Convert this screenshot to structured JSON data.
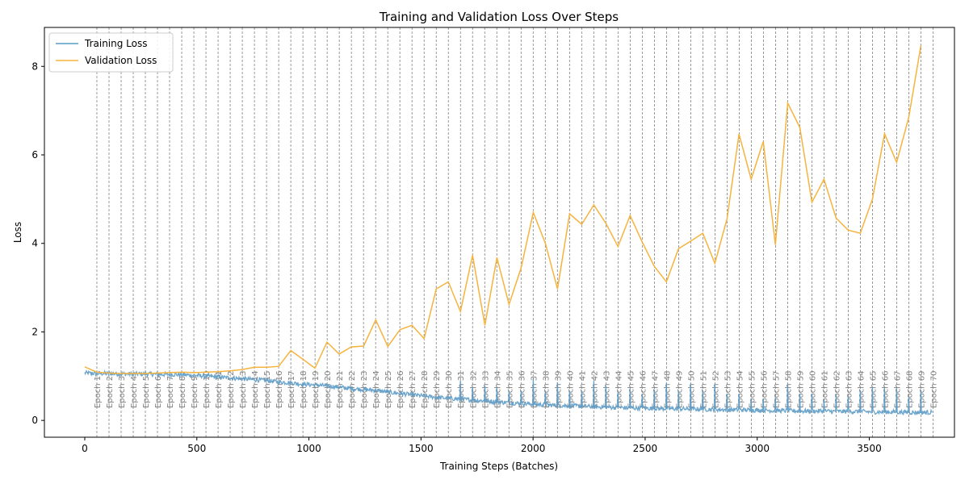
{
  "chart_data": {
    "type": "line",
    "title": "Training and Validation Loss Over Steps",
    "xlabel": "Training Steps (Batches)",
    "ylabel": "Loss",
    "xlim": [
      -180,
      3880
    ],
    "ylim": [
      -0.38,
      8.88
    ],
    "xticks": [
      0,
      500,
      1000,
      1500,
      2000,
      2500,
      3000,
      3500
    ],
    "yticks": [
      0,
      2,
      4,
      6,
      8
    ],
    "legend": {
      "position": "top-left",
      "entries": [
        {
          "label": "Training Loss",
          "color": "#5c9bc6"
        },
        {
          "label": "Validation Loss",
          "color": "#f6b33d"
        }
      ]
    },
    "epoch_step": 54.07,
    "epoch_labels": [
      "Epoch 1",
      "Epoch 2",
      "Epoch 3",
      "Epoch 4",
      "Epoch 5",
      "Epoch 6",
      "Epoch 7",
      "Epoch 8",
      "Epoch 9",
      "Epoch 10",
      "Epoch 11",
      "Epoch 12",
      "Epoch 13",
      "Epoch 14",
      "Epoch 15",
      "Epoch 16",
      "Epoch 17",
      "Epoch 18",
      "Epoch 19",
      "Epoch 20",
      "Epoch 21",
      "Epoch 22",
      "Epoch 23",
      "Epoch 24",
      "Epoch 25",
      "Epoch 26",
      "Epoch 27",
      "Epoch 28",
      "Epoch 29",
      "Epoch 30",
      "Epoch 31",
      "Epoch 32",
      "Epoch 33",
      "Epoch 34",
      "Epoch 35",
      "Epoch 36",
      "Epoch 37",
      "Epoch 38",
      "Epoch 39",
      "Epoch 40",
      "Epoch 41",
      "Epoch 42",
      "Epoch 43",
      "Epoch 44",
      "Epoch 45",
      "Epoch 46",
      "Epoch 47",
      "Epoch 48",
      "Epoch 49",
      "Epoch 50",
      "Epoch 51",
      "Epoch 52",
      "Epoch 53",
      "Epoch 54",
      "Epoch 55",
      "Epoch 56",
      "Epoch 57",
      "Epoch 58",
      "Epoch 59",
      "Epoch 60",
      "Epoch 61",
      "Epoch 62",
      "Epoch 63",
      "Epoch 64",
      "Epoch 65",
      "Epoch 66",
      "Epoch 67",
      "Epoch 68",
      "Epoch 69",
      "Epoch 70"
    ],
    "series": [
      {
        "name": "Training Loss",
        "color": "#5c9bc6",
        "x": [
          0,
          54,
          108,
          162,
          216,
          270,
          324,
          378,
          433,
          487,
          541,
          595,
          649,
          703,
          757,
          811,
          865,
          919,
          973,
          1027,
          1081,
          1135,
          1189,
          1244,
          1298,
          1352,
          1406,
          1460,
          1514,
          1568,
          1622,
          1676,
          1730,
          1785,
          1839,
          1893,
          1947,
          2001,
          2055,
          2109,
          2163,
          2217,
          2271,
          2325,
          2379,
          2433,
          2487,
          2541,
          2595,
          2649,
          2703,
          2757,
          2811,
          2865,
          2919,
          2973,
          3027,
          3081,
          3136,
          3190,
          3244,
          3298,
          3352,
          3406,
          3460,
          3514,
          3568,
          3622,
          3676,
          3730,
          3780
        ],
        "y": [
          1.07,
          1.06,
          1.06,
          1.05,
          1.05,
          1.05,
          1.04,
          1.04,
          1.03,
          1.02,
          1.0,
          0.98,
          0.96,
          0.94,
          0.92,
          0.9,
          0.87,
          0.85,
          0.82,
          0.8,
          0.78,
          0.75,
          0.72,
          0.7,
          0.68,
          0.64,
          0.61,
          0.58,
          0.55,
          0.52,
          0.5,
          0.48,
          0.46,
          0.44,
          0.42,
          0.4,
          0.38,
          0.37,
          0.35,
          0.34,
          0.33,
          0.32,
          0.31,
          0.3,
          0.29,
          0.28,
          0.28,
          0.27,
          0.27,
          0.26,
          0.26,
          0.25,
          0.25,
          0.24,
          0.24,
          0.23,
          0.23,
          0.22,
          0.22,
          0.21,
          0.21,
          0.21,
          0.2,
          0.2,
          0.2,
          0.19,
          0.19,
          0.19,
          0.18,
          0.18,
          0.18
        ]
      },
      {
        "name": "Validation Loss",
        "color": "#f6b33d",
        "x": [
          0,
          54,
          108,
          162,
          216,
          270,
          324,
          378,
          433,
          487,
          541,
          595,
          649,
          703,
          757,
          811,
          865,
          919,
          973,
          1027,
          1081,
          1135,
          1189,
          1244,
          1298,
          1352,
          1406,
          1460,
          1514,
          1568,
          1622,
          1676,
          1730,
          1785,
          1839,
          1893,
          1947,
          2001,
          2055,
          2109,
          2163,
          2217,
          2271,
          2325,
          2379,
          2433,
          2487,
          2541,
          2595,
          2649,
          2703,
          2757,
          2811,
          2865,
          2919,
          2973,
          3027,
          3081,
          3136,
          3190,
          3244,
          3298,
          3352,
          3406,
          3460,
          3514,
          3568,
          3622,
          3676,
          3730
        ],
        "y": [
          1.21,
          1.09,
          1.07,
          1.06,
          1.06,
          1.06,
          1.07,
          1.08,
          1.09,
          1.08,
          1.09,
          1.1,
          1.12,
          1.15,
          1.2,
          1.2,
          1.22,
          1.58,
          1.38,
          1.18,
          1.77,
          1.5,
          1.66,
          1.68,
          2.27,
          1.67,
          2.05,
          2.15,
          1.85,
          2.97,
          3.13,
          2.46,
          3.73,
          2.15,
          3.68,
          2.62,
          3.45,
          4.7,
          4.0,
          2.97,
          4.67,
          4.43,
          4.87,
          4.45,
          3.93,
          4.63,
          4.03,
          3.48,
          3.13,
          3.88,
          4.05,
          4.23,
          3.55,
          4.55,
          6.47,
          5.45,
          6.3,
          3.97,
          7.17,
          6.62,
          4.93,
          5.45,
          4.57,
          4.3,
          4.23,
          5.0,
          6.48,
          5.83,
          6.85,
          8.47
        ]
      }
    ]
  }
}
